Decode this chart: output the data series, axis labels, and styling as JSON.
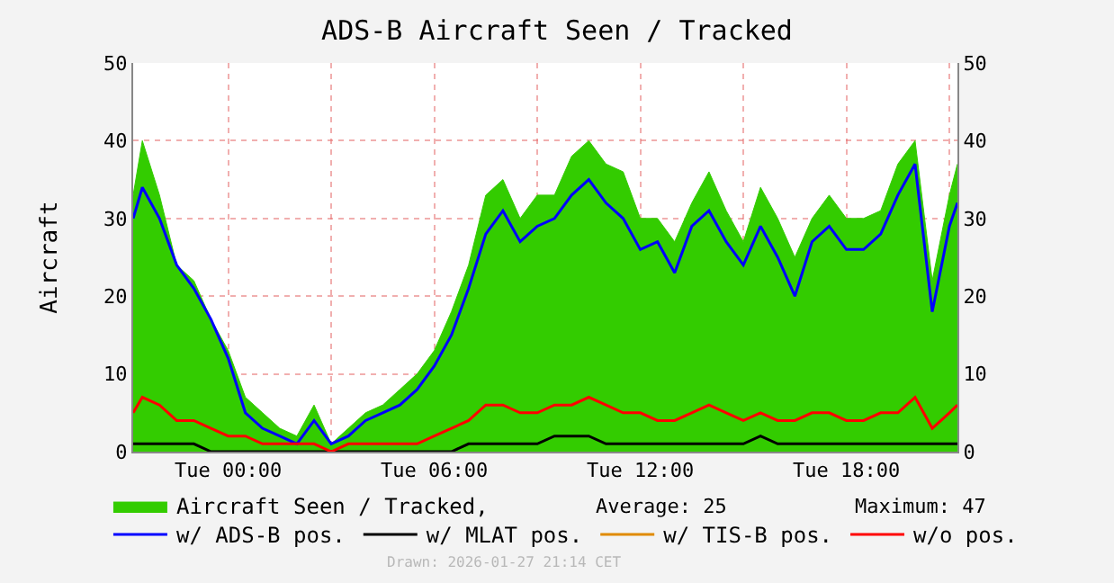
{
  "chart_data": {
    "type": "line",
    "title": "ADS-B Aircraft Seen / Tracked",
    "ylabel": "Aircraft",
    "x": [
      "2026-01-26T21:14",
      "2026-01-26T21:30",
      "2026-01-26T22:00",
      "2026-01-26T22:30",
      "2026-01-26T23:00",
      "2026-01-26T23:30",
      "2026-01-27T00:00",
      "2026-01-27T00:30",
      "2026-01-27T01:00",
      "2026-01-27T01:30",
      "2026-01-27T02:00",
      "2026-01-27T02:30",
      "2026-01-27T03:00",
      "2026-01-27T03:30",
      "2026-01-27T04:00",
      "2026-01-27T04:30",
      "2026-01-27T05:00",
      "2026-01-27T05:30",
      "2026-01-27T06:00",
      "2026-01-27T06:30",
      "2026-01-27T07:00",
      "2026-01-27T07:30",
      "2026-01-27T08:00",
      "2026-01-27T08:30",
      "2026-01-27T09:00",
      "2026-01-27T09:30",
      "2026-01-27T10:00",
      "2026-01-27T10:30",
      "2026-01-27T11:00",
      "2026-01-27T11:30",
      "2026-01-27T12:00",
      "2026-01-27T12:30",
      "2026-01-27T13:00",
      "2026-01-27T13:30",
      "2026-01-27T14:00",
      "2026-01-27T14:30",
      "2026-01-27T15:00",
      "2026-01-27T15:30",
      "2026-01-27T16:00",
      "2026-01-27T16:30",
      "2026-01-27T17:00",
      "2026-01-27T17:30",
      "2026-01-27T18:00",
      "2026-01-27T18:30",
      "2026-01-27T19:00",
      "2026-01-27T19:30",
      "2026-01-27T20:00",
      "2026-01-27T20:30",
      "2026-01-27T21:00",
      "2026-01-27T21:14"
    ],
    "series": [
      {
        "name": "Aircraft Seen / Tracked,",
        "type": "area",
        "color": "#33cc00",
        "values": [
          33,
          40,
          33,
          24,
          22,
          17,
          13,
          7,
          5,
          3,
          2,
          6,
          1,
          3,
          5,
          6,
          8,
          10,
          13,
          18,
          24,
          33,
          35,
          30,
          33,
          33,
          38,
          40,
          37,
          36,
          30,
          30,
          27,
          32,
          36,
          31,
          27,
          34,
          30,
          25,
          30,
          33,
          30,
          30,
          31,
          37,
          40,
          22,
          33,
          37
        ]
      },
      {
        "name": "w/ ADS-B pos.",
        "color": "#0000ff",
        "values": [
          30,
          34,
          30,
          24,
          21,
          17,
          12,
          5,
          3,
          2,
          1,
          4,
          1,
          2,
          4,
          5,
          6,
          8,
          11,
          15,
          21,
          28,
          31,
          27,
          29,
          30,
          33,
          35,
          32,
          30,
          26,
          27,
          23,
          29,
          31,
          27,
          24,
          29,
          25,
          20,
          27,
          29,
          26,
          26,
          28,
          33,
          37,
          18,
          29,
          32
        ]
      },
      {
        "name": "w/ MLAT pos.",
        "color": "#000000",
        "values": [
          1,
          1,
          1,
          1,
          1,
          0,
          0,
          0,
          0,
          0,
          0,
          0,
          0,
          0,
          0,
          0,
          0,
          0,
          0,
          0,
          1,
          1,
          1,
          1,
          1,
          2,
          2,
          2,
          1,
          1,
          1,
          1,
          1,
          1,
          1,
          1,
          1,
          2,
          1,
          1,
          1,
          1,
          1,
          1,
          1,
          1,
          1,
          1,
          1,
          1
        ]
      },
      {
        "name": "w/ TIS-B pos.",
        "color": "#e08a00",
        "values": [
          null,
          null,
          null,
          null,
          null,
          null,
          null,
          null,
          null,
          null,
          null,
          null,
          null,
          null,
          null,
          null,
          null,
          null,
          null,
          null,
          null,
          null,
          null,
          null,
          null,
          null,
          null,
          null,
          null,
          null,
          null,
          null,
          null,
          null,
          null,
          null,
          null,
          null,
          null,
          null,
          null,
          null,
          null,
          null,
          null,
          null,
          null,
          null,
          null,
          null
        ]
      },
      {
        "name": "w/o pos.",
        "color": "#ff0000",
        "values": [
          5,
          7,
          6,
          4,
          4,
          3,
          2,
          2,
          1,
          1,
          1,
          1,
          0,
          1,
          1,
          1,
          1,
          1,
          2,
          3,
          4,
          6,
          6,
          5,
          5,
          6,
          6,
          7,
          6,
          5,
          5,
          4,
          4,
          5,
          6,
          5,
          4,
          5,
          4,
          4,
          5,
          5,
          4,
          4,
          5,
          5,
          7,
          3,
          5,
          6
        ]
      }
    ],
    "xlim": [
      "2026-01-26T21:14",
      "2026-01-27T21:14"
    ],
    "xticks": [
      {
        "value": "2026-01-27T00:00",
        "label": "Tue 00:00"
      },
      {
        "value": "2026-01-27T03:00",
        "label": null
      },
      {
        "value": "2026-01-27T06:00",
        "label": "Tue 06:00"
      },
      {
        "value": "2026-01-27T09:00",
        "label": null
      },
      {
        "value": "2026-01-27T12:00",
        "label": "Tue 12:00"
      },
      {
        "value": "2026-01-27T15:00",
        "label": null
      },
      {
        "value": "2026-01-27T18:00",
        "label": "Tue 18:00"
      },
      {
        "value": "2026-01-27T21:00",
        "label": null
      }
    ],
    "ylim": [
      0,
      50
    ],
    "yticks": [
      0,
      10,
      20,
      30,
      40,
      50
    ],
    "y2lim": [
      0,
      50
    ],
    "y2ticks": [
      0,
      10,
      20,
      30,
      40,
      50
    ],
    "grid": true,
    "legend": "bottom",
    "annotations": [
      "Average: 25",
      "Maximum: 47",
      "Drawn: 2026-01-27 21:14 CET"
    ]
  }
}
